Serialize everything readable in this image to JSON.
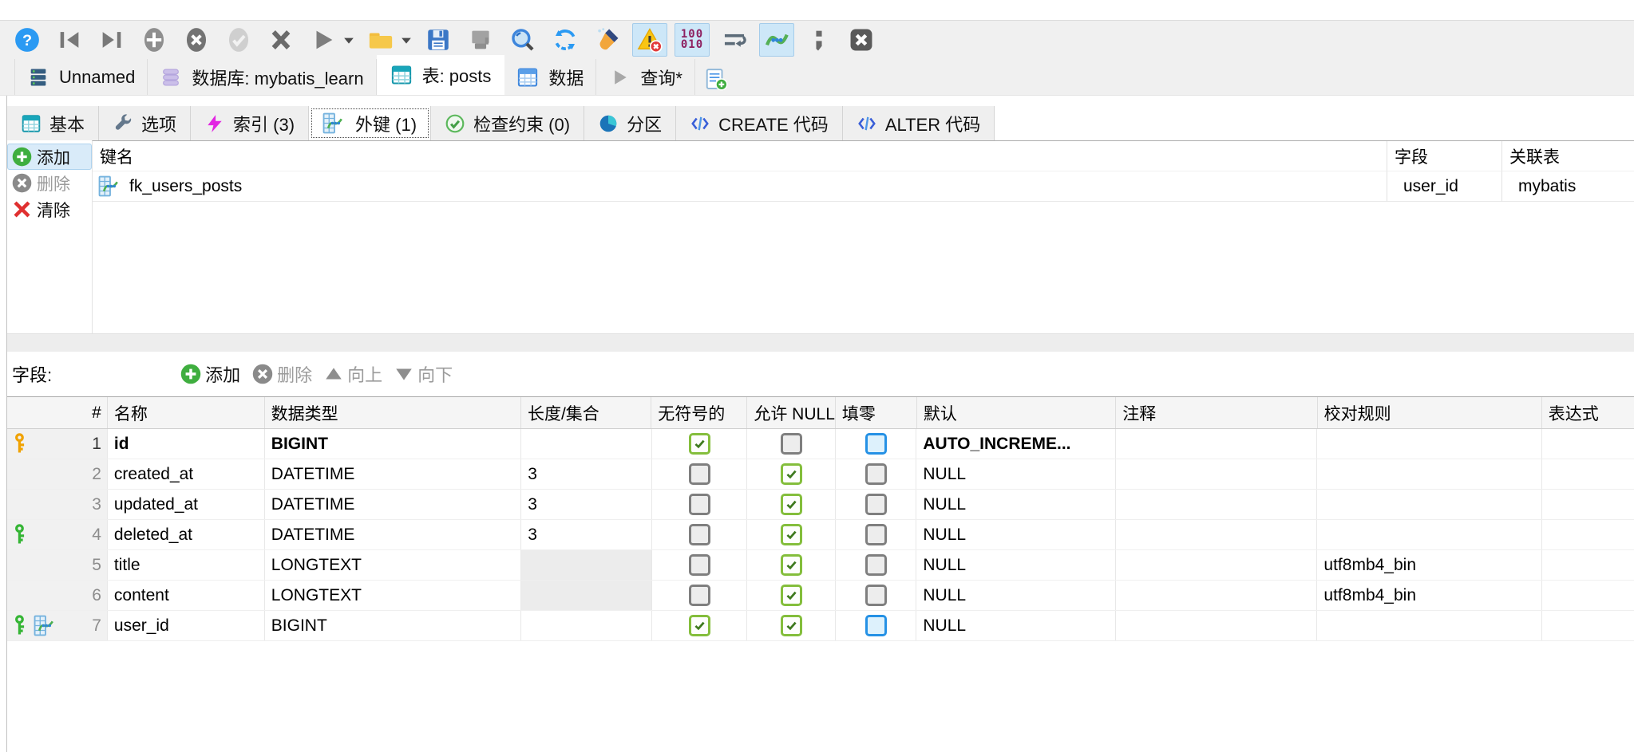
{
  "toolbar": {
    "icons": [
      {
        "name": "help"
      },
      {
        "name": "first-record"
      },
      {
        "name": "last-record"
      },
      {
        "name": "add-record"
      },
      {
        "name": "cancel-record"
      },
      {
        "name": "post-record"
      },
      {
        "name": "discard"
      },
      {
        "name": "run",
        "has_dropdown": true
      },
      {
        "name": "open-folder",
        "has_dropdown": true
      },
      {
        "name": "save"
      },
      {
        "name": "export"
      },
      {
        "name": "search"
      },
      {
        "name": "refresh"
      },
      {
        "name": "cleanup-brush"
      },
      {
        "name": "warnings",
        "toggled": true
      },
      {
        "name": "binary-view",
        "toggled": true
      },
      {
        "name": "word-wrap"
      },
      {
        "name": "connection-lines",
        "toggled": true
      },
      {
        "name": "semicolon"
      },
      {
        "name": "close"
      }
    ],
    "binary_line1": "100",
    "binary_line2": "010"
  },
  "tabs": {
    "items": [
      {
        "label": "Unnamed",
        "icon": "server-icon",
        "active": false
      },
      {
        "label": "数据库: mybatis_learn",
        "icon": "database-icon",
        "active": false
      },
      {
        "label": "表: posts",
        "icon": "table-teal-icon",
        "active": true
      },
      {
        "label": "数据",
        "icon": "data-grid-icon",
        "active": false
      },
      {
        "label": "查询*",
        "icon": "play-icon",
        "active": false
      }
    ],
    "new_query_tooltip_icon": "new-query-icon"
  },
  "subtabs": {
    "items": [
      {
        "label": "基本",
        "icon": "table-icon",
        "active": false
      },
      {
        "label": "选项",
        "icon": "wrench-icon",
        "active": false
      },
      {
        "label": "索引 (3)",
        "icon": "lightning-icon",
        "active": false
      },
      {
        "label": "外键 (1)",
        "icon": "foreign-key-icon",
        "active": true
      },
      {
        "label": "检查约束 (0)",
        "icon": "check-circle-icon",
        "active": false
      },
      {
        "label": "分区",
        "icon": "pie-icon",
        "active": false
      },
      {
        "label": "CREATE 代码",
        "icon": "code-icon",
        "active": false
      },
      {
        "label": "ALTER 代码",
        "icon": "code-icon",
        "active": false
      }
    ]
  },
  "foreign_key_panel": {
    "add_label": "添加",
    "delete_label": "删除",
    "clear_label": "清除",
    "columns": {
      "key_name": "键名",
      "field": "字段",
      "ref_table": "关联表"
    },
    "rows": [
      {
        "key_name": "fk_users_posts",
        "field": "user_id",
        "ref_table": "mybatis"
      }
    ]
  },
  "fields_section": {
    "label": "字段:",
    "add_label": "添加",
    "delete_label": "删除",
    "up_label": "向上",
    "down_label": "向下"
  },
  "fields_table": {
    "columns": [
      "#",
      "名称",
      "数据类型",
      "长度/集合",
      "无符号的",
      "允许 NULL",
      "填零",
      "默认",
      "注释",
      "校对规则",
      "表达式"
    ],
    "rows": [
      {
        "num": "1",
        "name": "id",
        "type": "BIGINT",
        "length": "",
        "unsigned": "on",
        "allow_null": "off",
        "zerofill": "off-blue",
        "default": "AUTO_INCREME...",
        "comment": "",
        "collation": "",
        "expression": "",
        "bold": true,
        "type_class": "t-int",
        "default_class": "d-auto",
        "length_disabled": false,
        "icons": [
          "primary-key"
        ]
      },
      {
        "num": "2",
        "name": "created_at",
        "type": "DATETIME",
        "length": "3",
        "unsigned": "off",
        "allow_null": "on",
        "zerofill": "off",
        "default": "NULL",
        "comment": "",
        "collation": "",
        "expression": "",
        "bold": false,
        "type_class": "t-date",
        "default_class": "d-null-date",
        "length_disabled": false,
        "icons": []
      },
      {
        "num": "3",
        "name": "updated_at",
        "type": "DATETIME",
        "length": "3",
        "unsigned": "off",
        "allow_null": "on",
        "zerofill": "off",
        "default": "NULL",
        "comment": "",
        "collation": "",
        "expression": "",
        "bold": false,
        "type_class": "t-date",
        "default_class": "d-null-date",
        "length_disabled": false,
        "icons": []
      },
      {
        "num": "4",
        "name": "deleted_at",
        "type": "DATETIME",
        "length": "3",
        "unsigned": "off",
        "allow_null": "on",
        "zerofill": "off",
        "default": "NULL",
        "comment": "",
        "collation": "",
        "expression": "",
        "bold": false,
        "type_class": "t-date",
        "default_class": "d-null-date",
        "length_disabled": false,
        "icons": [
          "index-key"
        ]
      },
      {
        "num": "5",
        "name": "title",
        "type": "LONGTEXT",
        "length": "",
        "unsigned": "off",
        "allow_null": "on",
        "zerofill": "off",
        "default": "NULL",
        "comment": "",
        "collation": "utf8mb4_bin",
        "expression": "",
        "bold": false,
        "type_class": "t-text",
        "default_class": "d-null-text",
        "length_disabled": true,
        "icons": []
      },
      {
        "num": "6",
        "name": "content",
        "type": "LONGTEXT",
        "length": "",
        "unsigned": "off",
        "allow_null": "on",
        "zerofill": "off",
        "default": "NULL",
        "comment": "",
        "collation": "utf8mb4_bin",
        "expression": "",
        "bold": false,
        "type_class": "t-text",
        "default_class": "d-null-text",
        "length_disabled": true,
        "icons": []
      },
      {
        "num": "7",
        "name": "user_id",
        "type": "BIGINT",
        "length": "",
        "unsigned": "on",
        "allow_null": "on",
        "zerofill": "off-blue",
        "default": "NULL",
        "comment": "",
        "collation": "",
        "expression": "",
        "bold": false,
        "type_class": "t-int",
        "default_class": "d-null-dim",
        "length_disabled": false,
        "icons": [
          "index-key",
          "foreign-key"
        ]
      }
    ]
  },
  "colors": {
    "toolbar_bg": "#F0F0F0",
    "toggle_bg": "#CDE7F8",
    "toggle_border": "#A4CCEA",
    "type_int": "#0000E8",
    "type_date": "#8C1717",
    "type_text": "#0B7F0B",
    "null_date": "#AC5C5C",
    "null_text": "#5CAC5C",
    "null_dim": "#B6B6DE",
    "primary_key": "#F0A202",
    "index_key": "#35B535",
    "checkbox_green": "#84BE3C",
    "checkbox_blue": "#2591E5",
    "checkbox_gray": "#7F7F7F"
  }
}
